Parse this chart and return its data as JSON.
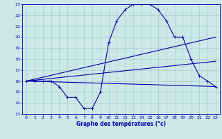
{
  "title": "Graphe des températures (°c)",
  "bg_color": "#cce8e8",
  "grid_color": "#aacccc",
  "line_color": "#0000aa",
  "xlim": [
    -0.5,
    23.5
  ],
  "ylim": [
    13,
    23
  ],
  "xticks": [
    0,
    1,
    2,
    3,
    4,
    5,
    6,
    7,
    8,
    9,
    10,
    11,
    12,
    13,
    14,
    15,
    16,
    17,
    18,
    19,
    20,
    21,
    22,
    23
  ],
  "yticks": [
    13,
    14,
    15,
    16,
    17,
    18,
    19,
    20,
    21,
    22,
    23
  ],
  "curve1_x": [
    0,
    1,
    2,
    3,
    4,
    5,
    6,
    7,
    8,
    9,
    10,
    11,
    12,
    13,
    14,
    15,
    16,
    17,
    18,
    19,
    20,
    21,
    22,
    23
  ],
  "curve1_y": [
    16,
    16,
    16,
    16,
    15.5,
    14.5,
    14.5,
    13.5,
    13.5,
    15,
    19.5,
    21.5,
    22.5,
    23,
    23,
    23,
    22.5,
    21.5,
    20,
    20,
    18,
    16.5,
    16,
    15.5
  ],
  "curve2_x": [
    0,
    23
  ],
  "curve2_y": [
    16,
    15.5
  ],
  "curve3_x": [
    0,
    23
  ],
  "curve3_y": [
    16,
    17.8
  ],
  "curve4_x": [
    0,
    23
  ],
  "curve4_y": [
    16,
    20
  ],
  "xlabel_fontsize": 5.5,
  "tick_fontsize": 4.5,
  "lw": 0.8
}
